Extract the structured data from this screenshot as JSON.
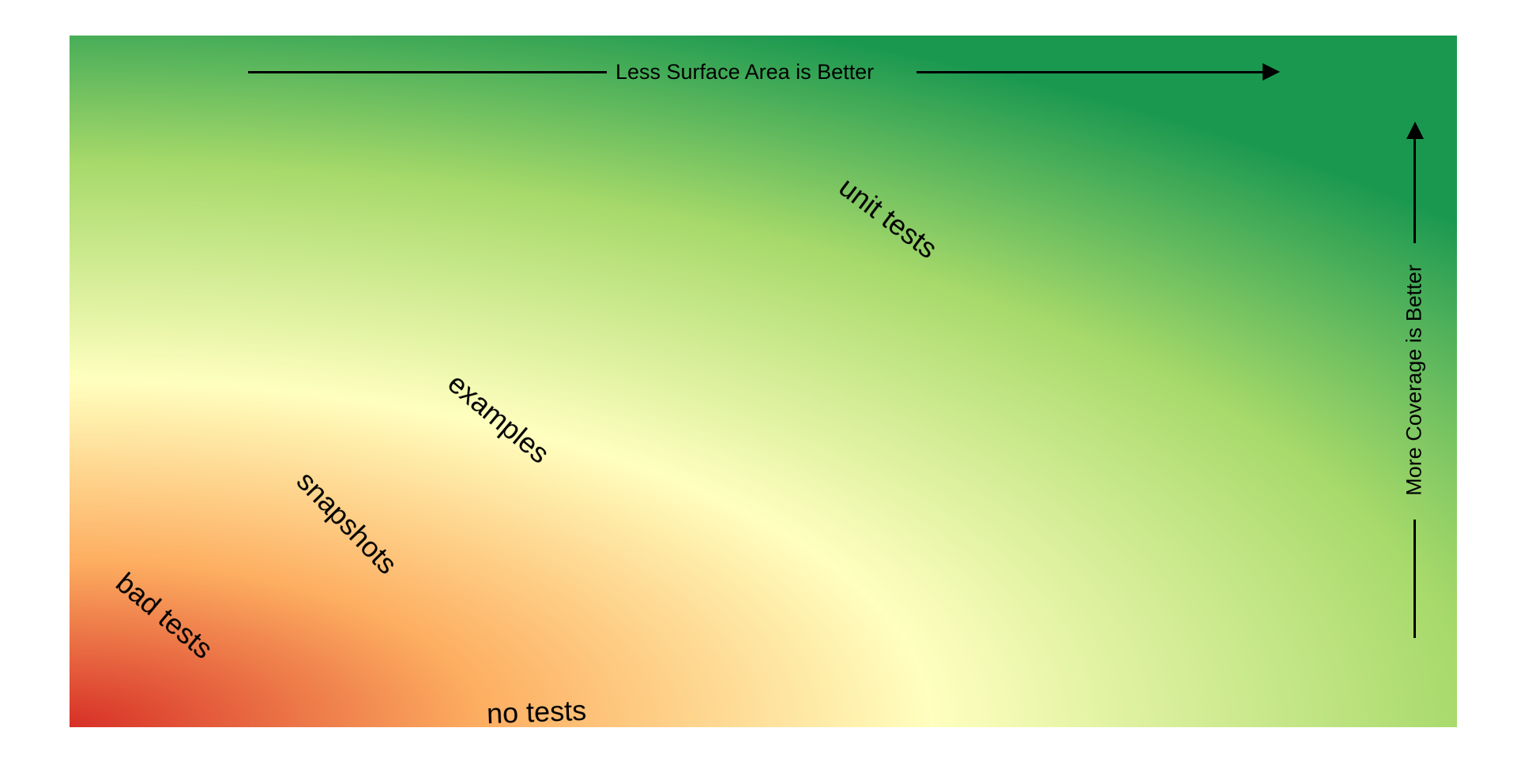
{
  "x_axis": {
    "label": "Less Surface Area is Better"
  },
  "y_axis": {
    "label": "More Coverage is Better"
  },
  "regions": [
    {
      "id": "unit-tests",
      "label": "unit tests"
    },
    {
      "id": "examples",
      "label": "examples"
    },
    {
      "id": "snapshots",
      "label": "snapshots"
    },
    {
      "id": "bad-tests",
      "label": "bad tests"
    },
    {
      "id": "no-tests",
      "label": "no tests"
    }
  ],
  "colors": {
    "bottom_left": "#d73027",
    "lower": "#fdae61",
    "middle": "#ffffbf",
    "upper": "#a6d96a",
    "top_right": "#1a9850",
    "axis": "#000000"
  }
}
